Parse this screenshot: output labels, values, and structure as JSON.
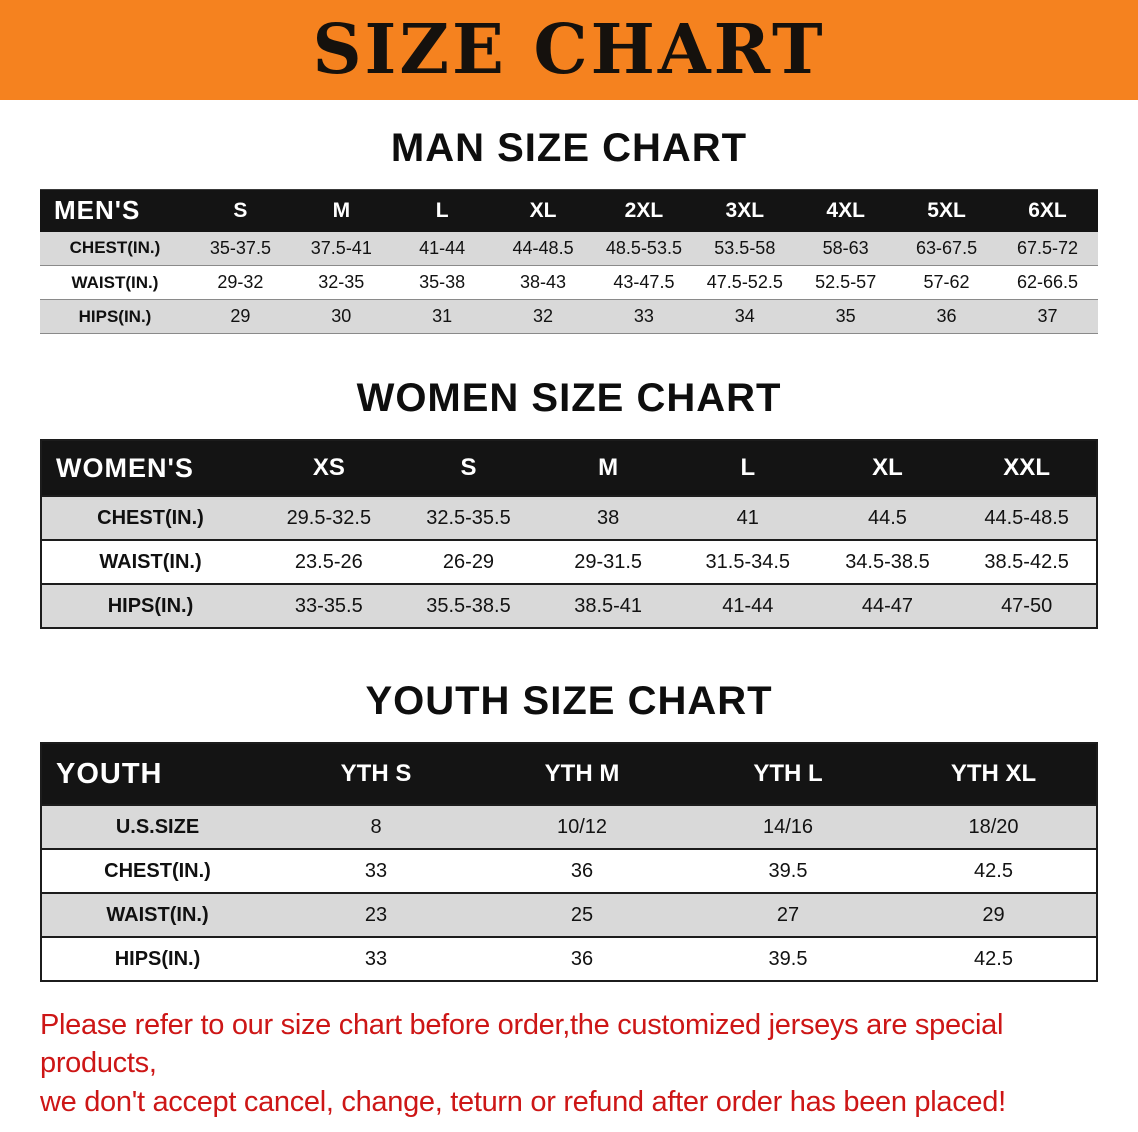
{
  "banner": {
    "title": "SIZE CHART"
  },
  "colors": {
    "banner-bg": "#f5821f",
    "banner-text": "#15110d",
    "header-bg": "#141414",
    "header-text": "#ffffff",
    "row-gray": "#d9d9d9",
    "row-white": "#ffffff",
    "disclaimer-red": "#cd1616"
  },
  "sections": [
    {
      "heading": "MAN SIZE CHART",
      "table": {
        "label": "MEN'S",
        "columns": [
          "S",
          "M",
          "L",
          "XL",
          "2XL",
          "3XL",
          "4XL",
          "5XL",
          "6XL"
        ],
        "rows": [
          {
            "label": "CHEST(IN.)",
            "values": [
              "35-37.5",
              "37.5-41",
              "41-44",
              "44-48.5",
              "48.5-53.5",
              "53.5-58",
              "58-63",
              "63-67.5",
              "67.5-72"
            ]
          },
          {
            "label": "WAIST(IN.)",
            "values": [
              "29-32",
              "32-35",
              "35-38",
              "38-43",
              "43-47.5",
              "47.5-52.5",
              "52.5-57",
              "57-62",
              "62-66.5"
            ]
          },
          {
            "label": "HIPS(IN.)",
            "values": [
              "29",
              "30",
              "31",
              "32",
              "33",
              "34",
              "35",
              "36",
              "37"
            ]
          }
        ]
      }
    },
    {
      "heading": "WOMEN SIZE CHART",
      "table": {
        "label": "WOMEN'S",
        "columns": [
          "XS",
          "S",
          "M",
          "L",
          "XL",
          "XXL"
        ],
        "rows": [
          {
            "label": "CHEST(IN.)",
            "values": [
              "29.5-32.5",
              "32.5-35.5",
              "38",
              "41",
              "44.5",
              "44.5-48.5"
            ]
          },
          {
            "label": "WAIST(IN.)",
            "values": [
              "23.5-26",
              "26-29",
              "29-31.5",
              "31.5-34.5",
              "34.5-38.5",
              "38.5-42.5"
            ]
          },
          {
            "label": "HIPS(IN.)",
            "values": [
              "33-35.5",
              "35.5-38.5",
              "38.5-41",
              "41-44",
              "44-47",
              "47-50"
            ]
          }
        ]
      }
    },
    {
      "heading": "YOUTH SIZE CHART",
      "table": {
        "label": "YOUTH",
        "columns": [
          "YTH S",
          "YTH M",
          "YTH L",
          "YTH XL"
        ],
        "rows": [
          {
            "label": "U.S.SIZE",
            "values": [
              "8",
              "10/12",
              "14/16",
              "18/20"
            ]
          },
          {
            "label": "CHEST(IN.)",
            "values": [
              "33",
              "36",
              "39.5",
              "42.5"
            ]
          },
          {
            "label": "WAIST(IN.)",
            "values": [
              "23",
              "25",
              "27",
              "29"
            ]
          },
          {
            "label": "HIPS(IN.)",
            "values": [
              "33",
              "36",
              "39.5",
              "42.5"
            ]
          }
        ]
      }
    }
  ],
  "disclaimer": {
    "lines": [
      "Please refer to our size chart before order,the customized jerseys are special products,",
      "we don't accept cancel, change, teturn or refund after order has been placed!"
    ]
  }
}
